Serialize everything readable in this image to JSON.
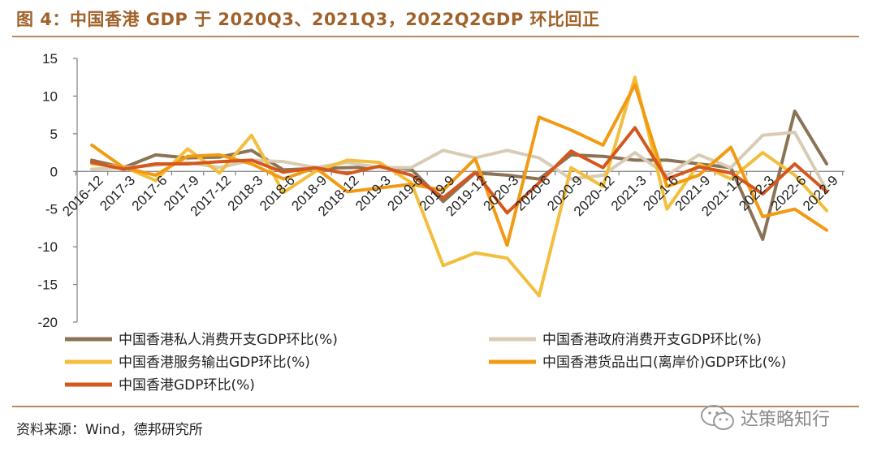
{
  "figure": {
    "title": "图 4：中国香港 GDP 于 2020Q3、2021Q3，2022Q2GDP 环比回正",
    "source": "资料来源：Wind，德邦研究所",
    "watermark": "达策略知行",
    "watermark_icon": "wechat-icon"
  },
  "chart_data": {
    "type": "line",
    "title": "中国香港 GDP 于 2020Q3、2021Q3，2022Q2GDP 环比回正",
    "xlabel": "",
    "ylabel": "",
    "ylim": [
      -20,
      15
    ],
    "yticks": [
      "15",
      "10",
      "5",
      "0",
      "-5",
      "-10",
      "-15",
      "-20"
    ],
    "grid": false,
    "legend_position": "bottom",
    "categories": [
      "2016-12",
      "2017-3",
      "2017-6",
      "2017-9",
      "2017-12",
      "2018-3",
      "2018-6",
      "2018-9",
      "2018-12",
      "2019-3",
      "2019-6",
      "2019-9",
      "2019-12",
      "2020-3",
      "2020-6",
      "2020-9",
      "2020-12",
      "2021-3",
      "2021-6",
      "2021-9",
      "2021-12",
      "2022-3",
      "2022-6",
      "2022-9"
    ],
    "series": [
      {
        "name": "中国香港私人消费开支GDP环比(%)",
        "color": "#8b7355",
        "width": 4,
        "values": [
          1.5,
          0.5,
          2.2,
          1.8,
          1.9,
          2.8,
          0.2,
          0.4,
          0.5,
          0.6,
          0.3,
          -4.0,
          -0.2,
          -0.5,
          -1.0,
          2.2,
          2.0,
          1.5,
          1.5,
          1.0,
          0.5,
          -9.0,
          8.0,
          1.0
        ]
      },
      {
        "name": "中国香港政府消费开支GDP环比(%)",
        "color": "#d8ccb4",
        "width": 4,
        "values": [
          0.3,
          0.5,
          0.8,
          1.2,
          0.5,
          1.5,
          1.3,
          0.5,
          1.2,
          0.5,
          0.5,
          2.8,
          1.8,
          2.8,
          1.8,
          -1.0,
          -0.5,
          2.5,
          -0.5,
          2.2,
          0.5,
          4.8,
          5.2,
          -2.5
        ]
      },
      {
        "name": "中国香港服务输出GDP环比(%)",
        "color": "#f2be3c",
        "width": 4,
        "values": [
          1.0,
          0.6,
          -1.2,
          3.0,
          -0.2,
          4.8,
          -2.8,
          0.0,
          1.5,
          1.2,
          -1.5,
          -12.5,
          -10.8,
          -11.5,
          -16.5,
          0.5,
          -2.0,
          12.5,
          -5.0,
          1.0,
          -1.0,
          2.5,
          -0.5,
          -5.2
        ]
      },
      {
        "name": "中国香港货品出口(离岸价)GDP环比(%)",
        "color": "#f29a12",
        "width": 4,
        "values": [
          3.5,
          0.5,
          -0.5,
          2.0,
          2.2,
          1.0,
          -1.0,
          0.5,
          -2.7,
          -2.2,
          -1.7,
          -2.5,
          1.7,
          -9.8,
          7.2,
          5.5,
          3.5,
          11.5,
          -2.0,
          -0.5,
          3.2,
          -6.0,
          -5.0,
          -7.8
        ]
      },
      {
        "name": "中国香港GDP环比(%)",
        "color": "#d4581e",
        "width": 4,
        "values": [
          1.2,
          0.3,
          1.0,
          1.0,
          1.3,
          1.5,
          -0.1,
          0.5,
          -0.3,
          0.7,
          -0.5,
          -3.5,
          -0.1,
          -5.5,
          -1.5,
          2.7,
          0.5,
          5.8,
          -1.0,
          0.6,
          -0.2,
          -3.0,
          1.0,
          -2.7
        ]
      }
    ]
  }
}
